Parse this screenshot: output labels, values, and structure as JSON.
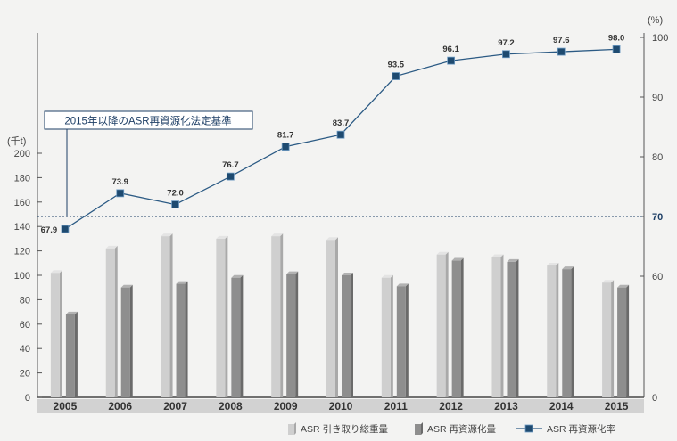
{
  "chart_data": {
    "type": "bar",
    "categories": [
      "2005",
      "2006",
      "2007",
      "2008",
      "2009",
      "2010",
      "2011",
      "2012",
      "2013",
      "2014",
      "2015"
    ],
    "series": [
      {
        "name": "ASR 引き取り総重量",
        "type": "bar",
        "axis": "left",
        "color": "#cfcfcf",
        "values": [
          102,
          122,
          132,
          130,
          132,
          129,
          98,
          117,
          115,
          108,
          94
        ]
      },
      {
        "name": "ASR 再資源化量",
        "type": "bar",
        "axis": "left",
        "color": "#8e8e8e",
        "values": [
          68,
          90,
          93,
          98,
          101,
          100,
          91,
          112,
          111,
          105,
          90
        ]
      },
      {
        "name": "ASR 再資源化率",
        "type": "line",
        "axis": "right",
        "color": "#2b5a84",
        "values": [
          67.9,
          73.9,
          72.0,
          76.7,
          81.7,
          83.7,
          93.5,
          96.1,
          97.2,
          97.6,
          98.0
        ],
        "labels": [
          "67.9",
          "73.9",
          "72.0",
          "76.7",
          "81.7",
          "83.7",
          "93.5",
          "96.1",
          "97.2",
          "97.6",
          "98.0"
        ]
      }
    ],
    "y_left": {
      "unit": "(千t)",
      "ticks": [
        "0",
        "20",
        "40",
        "60",
        "80",
        "100",
        "120",
        "140",
        "160",
        "180",
        "200"
      ],
      "range": [
        0,
        200
      ]
    },
    "y_right": {
      "unit": "(%)",
      "ticks": [
        "0",
        "60",
        "70",
        "80",
        "90",
        "100"
      ]
    },
    "reference_line": {
      "value": 70,
      "label": "70",
      "style": "dotted"
    },
    "annotation": "2015年以降のASR再資源化法定基準",
    "legend": {
      "position": "bottom-right"
    }
  },
  "colors": {
    "line": "#2b5a84",
    "marker": "#1e4a70",
    "background": "#f3f3f2",
    "axis": "#555555",
    "reference": "#1e3f66"
  }
}
